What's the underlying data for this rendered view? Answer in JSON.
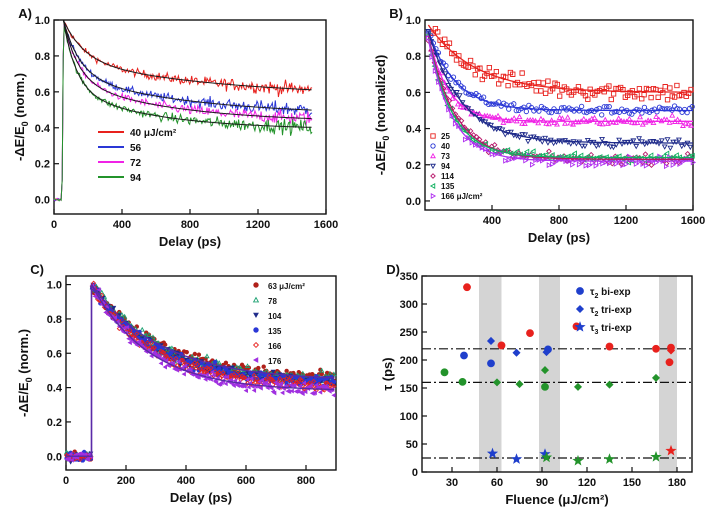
{
  "chart_data": [
    {
      "type": "line",
      "panel_label": "A)",
      "xlabel": "Delay (ps)",
      "ylabel_parts": [
        "-ΔE/E",
        "0",
        " (norm.)"
      ],
      "xlim": [
        0,
        1600
      ],
      "ylim": [
        -0.08,
        1.0
      ],
      "x_ticks": [
        0,
        400,
        800,
        1200,
        1600
      ],
      "y_ticks": [
        0.0,
        0.2,
        0.4,
        0.6,
        0.8,
        1.0
      ],
      "tick_labels_x": [
        "0",
        "400",
        "800",
        "1200",
        "1600"
      ],
      "tick_labels_y": [
        "0.0",
        "0.2",
        "0.4",
        "0.6",
        "0.8",
        "1.0"
      ],
      "legend_position": "bottom-left",
      "onset_ps": 55,
      "series": [
        {
          "name": "40 μJ/cm²",
          "color": "#e8211d",
          "amplitude": 1.0,
          "final": 0.57,
          "decay": [
            {
              "a": 0.22,
              "tau": 120
            },
            {
              "a": 0.21,
              "tau": 900
            }
          ]
        },
        {
          "name": "56",
          "color": "#2a37d6",
          "amplitude": 1.0,
          "final": 0.47,
          "decay": [
            {
              "a": 0.3,
              "tau": 95
            },
            {
              "a": 0.23,
              "tau": 700
            }
          ]
        },
        {
          "name": "72",
          "color": "#f023e6",
          "amplitude": 1.0,
          "final": 0.43,
          "decay": [
            {
              "a": 0.33,
              "tau": 85
            },
            {
              "a": 0.24,
              "tau": 600
            }
          ]
        },
        {
          "name": "94",
          "color": "#23932b",
          "amplitude": 1.0,
          "final": 0.39,
          "decay": [
            {
              "a": 0.38,
              "tau": 75
            },
            {
              "a": 0.23,
              "tau": 500
            }
          ]
        }
      ]
    },
    {
      "type": "scatter",
      "panel_label": "B)",
      "xlabel": "Delay (ps)",
      "ylabel_parts": [
        "-ΔE/E",
        "0",
        " (normalized)"
      ],
      "xlim": [
        0,
        1600
      ],
      "ylim": [
        -0.05,
        1.0
      ],
      "x_ticks": [
        400,
        800,
        1200,
        1600
      ],
      "y_ticks": [
        0.0,
        0.2,
        0.4,
        0.6,
        0.8,
        1.0
      ],
      "tick_labels_x": [
        "400",
        "800",
        "1200",
        "1600"
      ],
      "tick_labels_y": [
        "0.0",
        "0.2",
        "0.4",
        "0.6",
        "0.8",
        "1.0"
      ],
      "legend_position": "bottom-left",
      "onset_ps": 0,
      "series": [
        {
          "name": "25",
          "color": "#e8211d",
          "marker": "square",
          "amplitude": 1.0,
          "final": 0.6,
          "decay": [
            {
              "a": 0.4,
              "tau": 280
            }
          ]
        },
        {
          "name": "40",
          "color": "#2a37d6",
          "marker": "circle",
          "amplitude": 1.0,
          "final": 0.5,
          "decay": [
            {
              "a": 0.5,
              "tau": 160
            }
          ]
        },
        {
          "name": "73",
          "color": "#f023e6",
          "marker": "triangle-up",
          "amplitude": 1.0,
          "final": 0.44,
          "decay": [
            {
              "a": 0.56,
              "tau": 120
            }
          ]
        },
        {
          "name": "94",
          "color": "#1e2a8a",
          "marker": "triangle-down",
          "amplitude": 1.0,
          "final": 0.32,
          "decay": [
            {
              "a": 0.68,
              "tau": 200
            }
          ]
        },
        {
          "name": "114",
          "color": "#b8166a",
          "marker": "diamond",
          "amplitude": 1.0,
          "final": 0.23,
          "decay": [
            {
              "a": 0.77,
              "tau": 160
            }
          ]
        },
        {
          "name": "135",
          "color": "#10b060",
          "marker": "triangle-left",
          "amplitude": 1.0,
          "final": 0.24,
          "decay": [
            {
              "a": 0.76,
              "tau": 145
            }
          ]
        },
        {
          "name": "166 μJ/cm²",
          "color": "#b030f0",
          "marker": "triangle-right",
          "amplitude": 1.0,
          "final": 0.22,
          "decay": [
            {
              "a": 0.78,
              "tau": 140
            }
          ]
        }
      ],
      "fit_lines": {
        "color": "#5a2aa8"
      }
    },
    {
      "type": "scatter",
      "panel_label": "C)",
      "xlabel": "Delay (ps)",
      "ylabel_parts": [
        "-ΔE/E",
        "0",
        " (norm.)"
      ],
      "xlim": [
        0,
        900
      ],
      "ylim": [
        -0.08,
        1.05
      ],
      "x_ticks": [
        0,
        200,
        400,
        600,
        800
      ],
      "y_ticks": [
        0.0,
        0.2,
        0.4,
        0.6,
        0.8,
        1.0
      ],
      "tick_labels_x": [
        "0",
        "200",
        "400",
        "600",
        "800"
      ],
      "tick_labels_y": [
        "0.0",
        "0.2",
        "0.4",
        "0.6",
        "0.8",
        "1.0"
      ],
      "legend_position": "top-right",
      "onset_ps": 85,
      "series": [
        {
          "name": "63 μJ/cm²",
          "color": "#b0201a",
          "marker": "circle",
          "amplitude": 1.0,
          "final": 0.44,
          "decay": [
            {
              "a": 0.56,
              "tau": 230
            }
          ]
        },
        {
          "name": "78",
          "color": "#1aa070",
          "marker": "triangle-up",
          "amplitude": 1.0,
          "final": 0.43,
          "decay": [
            {
              "a": 0.57,
              "tau": 225
            }
          ]
        },
        {
          "name": "104",
          "color": "#1e2a8a",
          "marker": "triangle-down",
          "amplitude": 1.0,
          "final": 0.42,
          "decay": [
            {
              "a": 0.58,
              "tau": 215
            }
          ]
        },
        {
          "name": "135",
          "color": "#2a37d6",
          "marker": "circle",
          "amplitude": 1.0,
          "final": 0.42,
          "decay": [
            {
              "a": 0.58,
              "tau": 210
            }
          ]
        },
        {
          "name": "166",
          "color": "#e8211d",
          "marker": "diamond-open",
          "amplitude": 1.0,
          "final": 0.4,
          "decay": [
            {
              "a": 0.6,
              "tau": 205
            }
          ]
        },
        {
          "name": "176",
          "color": "#a030e0",
          "marker": "triangle-left",
          "amplitude": 1.0,
          "final": 0.38,
          "decay": [
            {
              "a": 0.62,
              "tau": 190
            }
          ]
        }
      ],
      "fit_lines": {
        "color": "#5a2aa8"
      }
    },
    {
      "type": "scatter",
      "panel_label": "D)",
      "xlabel": "Fluence (μJ/cm²)",
      "ylabel": "τ (ps)",
      "xlim": [
        10,
        190
      ],
      "ylim": [
        0,
        350
      ],
      "x_ticks": [
        30,
        60,
        90,
        120,
        150,
        180
      ],
      "y_ticks": [
        0,
        50,
        100,
        150,
        200,
        250,
        300,
        350
      ],
      "tick_labels_x": [
        "30",
        "60",
        "90",
        "120",
        "150",
        "180"
      ],
      "tick_labels_y": [
        "0",
        "50",
        "100",
        "150",
        "200",
        "250",
        "300",
        "350"
      ],
      "legend_position": "top-right",
      "legend": [
        {
          "marker": "circle",
          "color": "#1f3fcc",
          "tau_sub": "2",
          "label": " bi-exp"
        },
        {
          "marker": "diamond",
          "color": "#1f3fcc",
          "tau_sub": "2",
          "label": " tri-exp"
        },
        {
          "marker": "star",
          "color": "#1f3fcc",
          "tau_sub": "3",
          "label": " tri-exp"
        }
      ],
      "tau_symbol": "τ",
      "shaded_ranges": [
        [
          48,
          63
        ],
        [
          88,
          102
        ],
        [
          168,
          180
        ]
      ],
      "reference_lines": [
        220,
        160,
        25
      ],
      "series": [
        {
          "name": "bi-exp red",
          "color": "#e8211d",
          "marker": "circle",
          "points": [
            [
              40,
              330
            ],
            [
              63,
              226
            ],
            [
              82,
              248
            ],
            [
              113,
              260
            ],
            [
              135,
              224
            ],
            [
              175,
              196
            ]
          ]
        },
        {
          "name": "bi-exp blue",
          "color": "#1f3fcc",
          "marker": "circle",
          "points": [
            [
              38,
              208
            ],
            [
              56,
              194
            ],
            [
              94,
              219
            ]
          ]
        },
        {
          "name": "bi-exp green",
          "color": "#23932b",
          "marker": "circle",
          "points": [
            [
              25,
              178
            ],
            [
              37,
              161
            ],
            [
              92,
              152
            ]
          ]
        },
        {
          "name": "bi-exp red b",
          "color": "#e8211d",
          "marker": "circle",
          "points": [
            [
              166,
              220
            ],
            [
              176,
              222
            ]
          ]
        },
        {
          "name": "tri-exp τ2 blue",
          "color": "#1f3fcc",
          "marker": "diamond",
          "points": [
            [
              56,
              234
            ],
            [
              73,
              213
            ],
            [
              93,
              214
            ]
          ]
        },
        {
          "name": "tri-exp τ2 green",
          "color": "#23932b",
          "marker": "diamond",
          "points": [
            [
              60,
              160
            ],
            [
              75,
              157
            ],
            [
              92,
              182
            ],
            [
              114,
              152
            ],
            [
              135,
              156
            ],
            [
              166,
              168
            ]
          ]
        },
        {
          "name": "tri-exp τ2 red",
          "color": "#e8211d",
          "marker": "diamond",
          "points": [
            [
              176,
              217
            ]
          ]
        },
        {
          "name": "tri-exp τ3 blue",
          "color": "#1f3fcc",
          "marker": "star",
          "points": [
            [
              57,
              33
            ],
            [
              73,
              23
            ],
            [
              92,
              32
            ]
          ]
        },
        {
          "name": "tri-exp τ3 green",
          "color": "#23932b",
          "marker": "star",
          "points": [
            [
              93,
              26
            ],
            [
              114,
              20
            ],
            [
              135,
              23
            ],
            [
              166,
              27
            ]
          ]
        },
        {
          "name": "tri-exp τ3 red",
          "color": "#e8211d",
          "marker": "star",
          "points": [
            [
              176,
              38
            ]
          ]
        }
      ]
    }
  ]
}
